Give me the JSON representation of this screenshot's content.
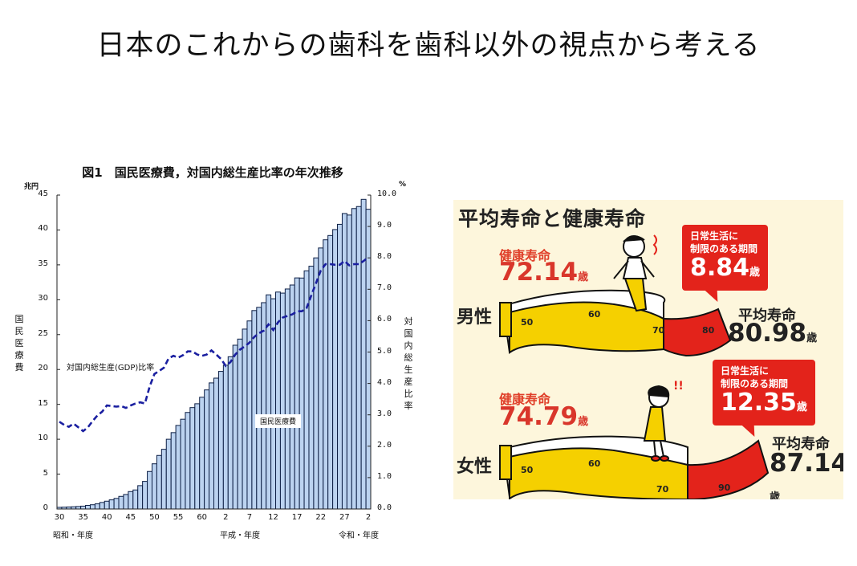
{
  "slide": {
    "title": "日本のこれからの歯科を歯科以外の視点から考える"
  },
  "chart_data": [
    {
      "type": "bar",
      "title": "図1　国民医療費，対国内総生産比率の年次推移",
      "left_axis": {
        "unit": "兆円",
        "label": "国民医療費",
        "ticks": [
          "0",
          "5",
          "10",
          "15",
          "20",
          "25",
          "30",
          "35",
          "40",
          "45"
        ],
        "ylim": [
          0,
          45
        ]
      },
      "right_axis": {
        "unit": "%",
        "label": "対国内総生産比率",
        "ticks": [
          "0.0",
          "1.0",
          "2.0",
          "3.0",
          "4.0",
          "5.0",
          "6.0",
          "7.0",
          "8.0",
          "9.0",
          "10.0"
        ],
        "ylim": [
          0,
          10
        ]
      },
      "x_ticks": [
        "30",
        "35",
        "40",
        "45",
        "50",
        "55",
        "60",
        "2",
        "7",
        "12",
        "17",
        "22",
        "27",
        "2"
      ],
      "era_labels": [
        "昭和・年度",
        "平成・年度",
        "令和・年度"
      ],
      "legend": {
        "bars": "国民医療費",
        "line": "対国内総生産(GDP)比率"
      },
      "grid": false,
      "x": [
        "S30",
        "S31",
        "S32",
        "S33",
        "S34",
        "S35",
        "S36",
        "S37",
        "S38",
        "S39",
        "S40",
        "S41",
        "S42",
        "S43",
        "S44",
        "S45",
        "S46",
        "S47",
        "S48",
        "S49",
        "S50",
        "S51",
        "S52",
        "S53",
        "S54",
        "S55",
        "S56",
        "S57",
        "S58",
        "S59",
        "S60",
        "S61",
        "S62",
        "S63",
        "H1",
        "H2",
        "H3",
        "H4",
        "H5",
        "H6",
        "H7",
        "H8",
        "H9",
        "H10",
        "H11",
        "H12",
        "H13",
        "H14",
        "H15",
        "H16",
        "H17",
        "H18",
        "H19",
        "H20",
        "H21",
        "H22",
        "H23",
        "H24",
        "H25",
        "H26",
        "H27",
        "H28",
        "H29",
        "H30",
        "R1",
        "R2"
      ],
      "series": [
        {
          "name": "国民医療費",
          "type": "bar",
          "axis": "left",
          "color": "#bcd3f0",
          "values": [
            0.24,
            0.26,
            0.29,
            0.32,
            0.36,
            0.41,
            0.52,
            0.61,
            0.74,
            0.94,
            1.12,
            1.31,
            1.52,
            1.81,
            2.08,
            2.5,
            2.73,
            3.35,
            3.96,
            5.38,
            6.48,
            7.68,
            8.56,
            10.0,
            10.95,
            11.98,
            12.87,
            13.84,
            14.54,
            15.09,
            16.02,
            17.07,
            18.08,
            18.76,
            19.73,
            20.61,
            21.83,
            23.48,
            24.36,
            25.79,
            26.96,
            28.45,
            28.91,
            29.58,
            30.7,
            30.14,
            31.1,
            30.95,
            31.54,
            32.11,
            33.13,
            33.11,
            34.14,
            34.81,
            36.0,
            37.42,
            38.59,
            39.21,
            40.06,
            40.81,
            42.36,
            42.14,
            43.07,
            43.36,
            44.39,
            42.97
          ]
        },
        {
          "name": "対国内総生産(GDP)比率",
          "type": "line",
          "style": "dashed",
          "axis": "right",
          "color": "#1a1fa0",
          "values": [
            2.78,
            2.68,
            2.62,
            2.72,
            2.6,
            2.48,
            2.6,
            2.8,
            2.98,
            3.1,
            3.3,
            3.28,
            3.26,
            3.28,
            3.22,
            3.3,
            3.36,
            3.4,
            3.36,
            3.9,
            4.3,
            4.4,
            4.5,
            4.8,
            4.88,
            4.82,
            4.9,
            5.02,
            5.02,
            4.92,
            4.88,
            4.92,
            5.05,
            4.92,
            4.78,
            4.56,
            4.68,
            4.92,
            5.08,
            5.18,
            5.3,
            5.48,
            5.6,
            5.68,
            5.88,
            5.7,
            5.95,
            6.1,
            6.15,
            6.2,
            6.3,
            6.3,
            6.4,
            6.8,
            7.2,
            7.6,
            7.8,
            7.8,
            7.78,
            7.78,
            7.9,
            7.76,
            7.8,
            7.8,
            7.9,
            8.02
          ]
        }
      ]
    },
    {
      "type": "table",
      "title": "平均寿命と健康寿命",
      "rows": [
        {
          "gender": "男性",
          "healthy_label": "健康寿命",
          "healthy_value": "72.14",
          "avg_label": "平均寿命",
          "avg_value": "80.98",
          "gap_label_1": "日常生活に",
          "gap_label_2": "制限のある期間",
          "gap_value": "8.84"
        },
        {
          "gender": "女性",
          "healthy_label": "健康寿命",
          "healthy_value": "74.79",
          "avg_label": "平均寿命",
          "avg_value": "87.14",
          "gap_label_1": "日常生活に",
          "gap_label_2": "制限のある期間",
          "gap_value": "12.35"
        }
      ],
      "unit": "歳",
      "scale_ticks": [
        "50",
        "60",
        "70",
        "80"
      ]
    }
  ],
  "infographic": {
    "title": "平均寿命と健康寿命",
    "unit": "歳",
    "male": {
      "gender": "男性",
      "healthy_label": "健康寿命",
      "healthy_value": "72.14",
      "avg_label": "平均寿命",
      "avg_value": "80.98",
      "bubble_line1": "日常生活に",
      "bubble_line2": "制限のある期間",
      "bubble_value": "8.84"
    },
    "female": {
      "gender": "女性",
      "healthy_label": "健康寿命",
      "healthy_value": "74.79",
      "avg_label": "平均寿命",
      "avg_value": "87.14",
      "bubble_line1": "日常生活に",
      "bubble_line2": "制限のある期間",
      "bubble_value": "12.35"
    },
    "scale": [
      "50",
      "60",
      "70",
      "80"
    ],
    "colors": {
      "background": "#fdf6dc",
      "healthy": "#f5d000",
      "limited": "#e3231b",
      "text_red": "#d9362b"
    }
  }
}
